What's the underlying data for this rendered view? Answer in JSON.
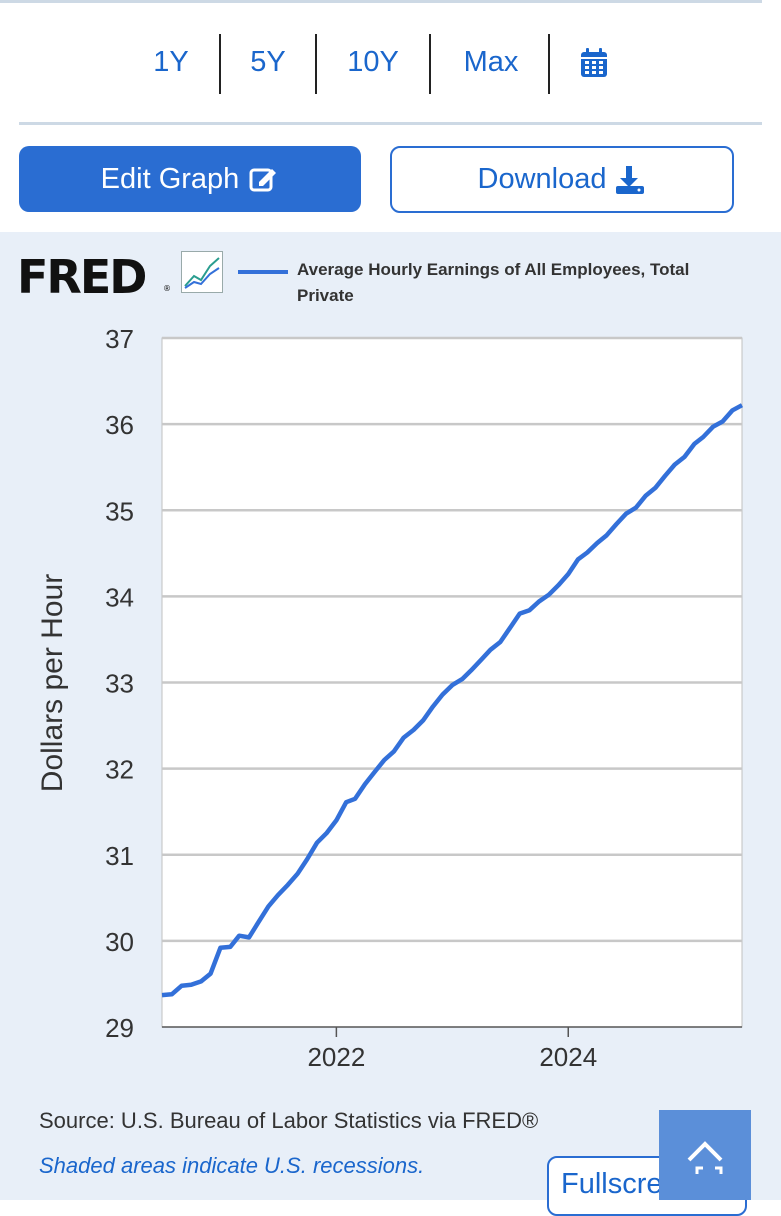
{
  "range_tabs": [
    "1Y",
    "5Y",
    "10Y",
    "Max"
  ],
  "calendar_icon": "calendar-icon",
  "edit_graph": {
    "label": "Edit Graph",
    "icon": "edit-icon"
  },
  "download": {
    "label": "Download",
    "icon": "download-icon"
  },
  "logo": {
    "text": "FRED",
    "reg": "®"
  },
  "colors": {
    "accent": "#2a6dd2",
    "series": "#3370d9",
    "chart_bg": "#e8eff8",
    "link": "#1a66cc"
  },
  "chart_data": {
    "type": "line",
    "title": "",
    "xlabel": "",
    "ylabel": "Dollars per Hour",
    "ylim": [
      29,
      37
    ],
    "yticks": [
      "29",
      "30",
      "31",
      "32",
      "33",
      "34",
      "35",
      "36",
      "37"
    ],
    "xticks": [
      "2022",
      "2024"
    ],
    "legend": [
      "Average Hourly Earnings of All Employees, Total Private"
    ],
    "grid": true,
    "series": [
      {
        "name": "Average Hourly Earnings of All Employees, Total Private",
        "x": [
          "2020-07",
          "2020-08",
          "2020-09",
          "2020-10",
          "2020-11",
          "2020-12",
          "2021-01",
          "2021-02",
          "2021-03",
          "2021-04",
          "2021-05",
          "2021-06",
          "2021-07",
          "2021-08",
          "2021-09",
          "2021-10",
          "2021-11",
          "2021-12",
          "2022-01",
          "2022-02",
          "2022-03",
          "2022-04",
          "2022-05",
          "2022-06",
          "2022-07",
          "2022-08",
          "2022-09",
          "2022-10",
          "2022-11",
          "2022-12",
          "2023-01",
          "2023-02",
          "2023-03",
          "2023-04",
          "2023-05",
          "2023-06",
          "2023-07",
          "2023-08",
          "2023-09",
          "2023-10",
          "2023-11",
          "2023-12",
          "2024-01",
          "2024-02",
          "2024-03",
          "2024-04",
          "2024-05",
          "2024-06",
          "2024-07",
          "2024-08",
          "2024-09",
          "2024-10",
          "2024-11",
          "2024-12",
          "2025-01",
          "2025-02",
          "2025-03",
          "2025-04",
          "2025-05",
          "2025-06",
          "2025-07"
        ],
        "y": [
          29.37,
          29.38,
          29.48,
          29.49,
          29.53,
          29.62,
          29.92,
          29.93,
          30.06,
          30.04,
          30.22,
          30.4,
          30.53,
          30.65,
          30.78,
          30.95,
          31.14,
          31.25,
          31.4,
          31.61,
          31.65,
          31.82,
          31.96,
          32.1,
          32.2,
          32.36,
          32.45,
          32.56,
          32.72,
          32.86,
          32.97,
          33.04,
          33.14,
          33.26,
          33.38,
          33.47,
          33.63,
          33.8,
          33.84,
          33.94,
          34.02,
          34.13,
          34.26,
          34.43,
          34.51,
          34.62,
          34.71,
          34.84,
          34.96,
          35.03,
          35.17,
          35.26,
          35.4,
          35.53,
          35.62,
          35.77,
          35.85,
          35.97,
          36.03,
          36.16,
          36.22
        ]
      }
    ]
  },
  "footer": {
    "source": "Source: U.S. Bureau of Labor Statistics via FRED®",
    "shaded_note": "Shaded areas indicate U.S. recessions.",
    "fullscreen": "Fullscreen"
  }
}
